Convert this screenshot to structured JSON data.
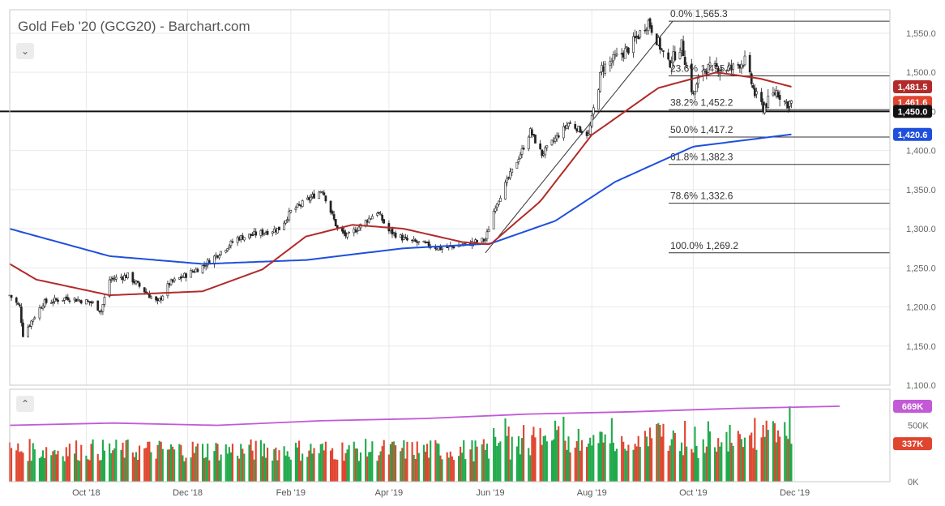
{
  "title": "Gold Feb '20 (GCG20) - Barchart.com",
  "colors": {
    "up": "#1faa4b",
    "down": "#e0452f",
    "sma_red": "#b22a2a",
    "sma_blue": "#1f4fdc",
    "vol_ma": "#c25ad6",
    "grid": "#e9e9e9",
    "axis": "#c8c8c8",
    "text": "#444444"
  },
  "price_panel": {
    "y_ticks": [
      "1,100.0",
      "1,150.0",
      "1,200.0",
      "1,250.0",
      "1,300.0",
      "1,350.0",
      "1,400.0",
      "1,450.0",
      "1,500.0",
      "1,550.0"
    ],
    "y_min": 1100,
    "y_max": 1580,
    "horizontal_line": 1450.0,
    "collapse_icon": "chevron-down-icon"
  },
  "volume_panel": {
    "y_ticks": [
      "0K",
      "500K"
    ],
    "collapse_icon": "chevron-up-icon"
  },
  "x_axis": {
    "labels": [
      "Oct '18",
      "Dec '18",
      "Feb '19",
      "Apr '19",
      "Jun '19",
      "Aug '19",
      "Oct '19",
      "Dec '19"
    ]
  },
  "fibonacci": [
    {
      "label": "0.0%",
      "value": 1565.3,
      "text": "0.0% 1,565.3"
    },
    {
      "label": "23.6%",
      "value": 1495.4,
      "text": "23.6% 1,495.4"
    },
    {
      "label": "38.2%",
      "value": 1452.2,
      "text": "38.2% 1,452.2"
    },
    {
      "label": "50.0%",
      "value": 1417.2,
      "text": "50.0% 1,417.2"
    },
    {
      "label": "61.8%",
      "value": 1382.3,
      "text": "61.8% 1,382.3"
    },
    {
      "label": "78.6%",
      "value": 1332.6,
      "text": "78.6% 1,332.6"
    },
    {
      "label": "100.0%",
      "value": 1269.2,
      "text": "100.0% 1,269.2"
    }
  ],
  "price_badges": [
    {
      "text": "1,481.5",
      "value": 1481.5,
      "color": "#b22a2a"
    },
    {
      "text": "1,461.6",
      "value": 1461.6,
      "color": "#e0452f"
    },
    {
      "text": "1,450.0",
      "value": 1450.0,
      "color": "#111111"
    },
    {
      "text": "1,420.6",
      "value": 1420.6,
      "color": "#1f4fdc"
    }
  ],
  "volume_badges": [
    {
      "text": "669K",
      "value": 669,
      "color": "#c25ad6"
    },
    {
      "text": "337K",
      "value": 337,
      "color": "#e0452f"
    }
  ],
  "chart_data": {
    "type": "candlestick",
    "title": "Gold Feb '20 (GCG20) - Barchart.com",
    "x_labels": [
      "Oct '18",
      "Dec '18",
      "Feb '19",
      "Apr '19",
      "Jun '19",
      "Aug '19",
      "Oct '19",
      "Dec '19"
    ],
    "ylim": [
      1100,
      1580
    ],
    "price_anchors": [
      [
        "2018-08-16",
        1215
      ],
      [
        "2018-08-22",
        1200
      ],
      [
        "2018-08-24",
        1165
      ],
      [
        "2018-09-05",
        1205
      ],
      [
        "2018-09-20",
        1212
      ],
      [
        "2018-10-05",
        1205
      ],
      [
        "2018-10-10",
        1195
      ],
      [
        "2018-10-15",
        1235
      ],
      [
        "2018-10-26",
        1240
      ],
      [
        "2018-11-13",
        1205
      ],
      [
        "2018-11-20",
        1230
      ],
      [
        "2018-12-10",
        1252
      ],
      [
        "2018-12-31",
        1288
      ],
      [
        "2019-01-25",
        1300
      ],
      [
        "2019-02-01",
        1322
      ],
      [
        "2019-02-20",
        1350
      ],
      [
        "2019-03-01",
        1300
      ],
      [
        "2019-03-07",
        1290
      ],
      [
        "2019-03-25",
        1322
      ],
      [
        "2019-04-01",
        1297
      ],
      [
        "2019-04-12",
        1285
      ],
      [
        "2019-04-23",
        1280
      ],
      [
        "2019-05-02",
        1275
      ],
      [
        "2019-05-17",
        1280
      ],
      [
        "2019-05-29",
        1286
      ],
      [
        "2019-06-04",
        1330
      ],
      [
        "2019-06-20",
        1400
      ],
      [
        "2019-06-25",
        1425
      ],
      [
        "2019-07-02",
        1395
      ],
      [
        "2019-07-18",
        1435
      ],
      [
        "2019-07-30",
        1420
      ],
      [
        "2019-08-07",
        1505
      ],
      [
        "2019-08-23",
        1530
      ],
      [
        "2019-09-04",
        1565
      ],
      [
        "2019-09-16",
        1510
      ],
      [
        "2019-09-24",
        1535
      ],
      [
        "2019-10-01",
        1470
      ],
      [
        "2019-10-07",
        1505
      ],
      [
        "2019-10-24",
        1505
      ],
      [
        "2019-11-01",
        1515
      ],
      [
        "2019-11-07",
        1472
      ],
      [
        "2019-11-12",
        1455
      ],
      [
        "2019-11-20",
        1476
      ],
      [
        "2019-11-26",
        1460
      ],
      [
        "2019-11-29",
        1461.6
      ]
    ],
    "sma_50_anchors": [
      [
        "2018-08-16",
        1255
      ],
      [
        "2018-09-01",
        1235
      ],
      [
        "2018-10-15",
        1215
      ],
      [
        "2018-12-10",
        1220
      ],
      [
        "2019-01-15",
        1248
      ],
      [
        "2019-02-10",
        1290
      ],
      [
        "2019-03-10",
        1305
      ],
      [
        "2019-04-10",
        1300
      ],
      [
        "2019-05-15",
        1283
      ],
      [
        "2019-06-01",
        1280
      ],
      [
        "2019-07-01",
        1335
      ],
      [
        "2019-08-01",
        1420
      ],
      [
        "2019-09-10",
        1480
      ],
      [
        "2019-10-15",
        1500
      ],
      [
        "2019-11-10",
        1492
      ],
      [
        "2019-11-29",
        1481.5
      ]
    ],
    "sma_200_anchors": [
      [
        "2018-08-16",
        1300
      ],
      [
        "2018-10-15",
        1265
      ],
      [
        "2018-12-10",
        1255
      ],
      [
        "2019-02-10",
        1260
      ],
      [
        "2019-04-10",
        1275
      ],
      [
        "2019-06-01",
        1281
      ],
      [
        "2019-07-10",
        1310
      ],
      [
        "2019-08-15",
        1360
      ],
      [
        "2019-10-01",
        1405
      ],
      [
        "2019-11-29",
        1420.6
      ]
    ],
    "volume_ma_level_k": [
      500,
      520,
      500,
      540,
      560,
      600,
      620,
      650,
      669
    ],
    "fib_retracement": {
      "high": 1565.3,
      "low": 1269.2
    },
    "annotations": [
      "1,450.0 horizontal support"
    ]
  }
}
